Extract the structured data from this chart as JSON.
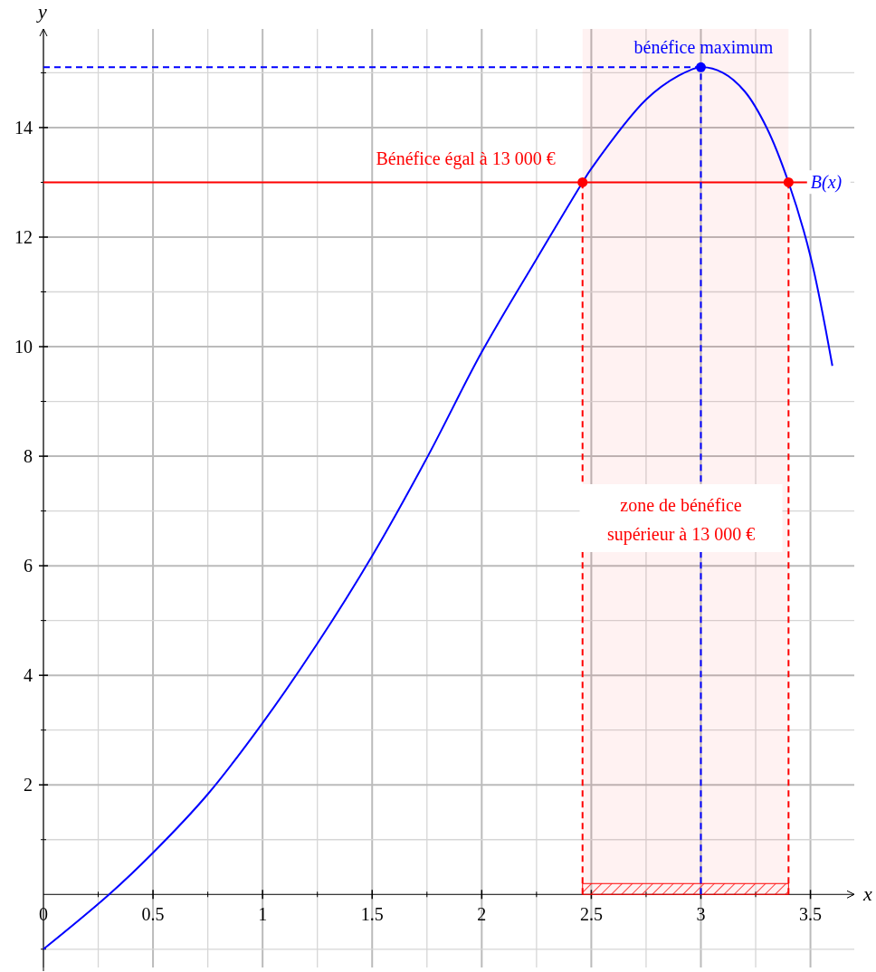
{
  "chart_data": {
    "type": "line",
    "xlabel": "x",
    "ylabel": "y",
    "xlim": [
      0,
      3.7
    ],
    "ylim": [
      -1.4,
      15.8
    ],
    "xticks": [
      {
        "value": 0,
        "label": "0"
      },
      {
        "value": 0.25,
        "label": null
      },
      0.5,
      {
        "value": 0.75,
        "label": null
      },
      1,
      {
        "value": 1.25,
        "label": null
      },
      1.5,
      {
        "value": 1.75,
        "label": null
      },
      2,
      {
        "value": 2.25,
        "label": null
      },
      2.5,
      {
        "value": 2.75,
        "label": null
      },
      3,
      {
        "value": 3.25,
        "label": null
      },
      3.5
    ],
    "yticks": [
      {
        "value": -1,
        "label": null
      },
      {
        "value": 1,
        "label": null
      },
      2,
      {
        "value": 3,
        "label": null
      },
      4,
      {
        "value": 5,
        "label": null
      },
      6,
      {
        "value": 7,
        "label": null
      },
      8,
      {
        "value": 9,
        "label": null
      },
      10,
      {
        "value": 11,
        "label": null
      },
      12,
      {
        "value": 13,
        "label": null
      },
      14,
      {
        "value": 15,
        "label": null
      }
    ],
    "grid": true,
    "series": [
      {
        "name": "B(x)",
        "color": "#0000ff",
        "line_style": "solid",
        "marker": "none",
        "x": [
          0,
          0.3,
          0.5,
          0.75,
          1,
          1.25,
          1.5,
          1.75,
          2,
          2.25,
          2.46,
          2.5,
          2.75,
          2.9,
          3,
          3.1,
          3.2,
          3.3,
          3.4,
          3.5,
          3.6
        ],
        "values": [
          -1,
          0,
          0.76,
          1.83,
          3.13,
          4.58,
          6.18,
          7.97,
          9.9,
          11.6,
          13,
          13.25,
          14.51,
          14.95,
          15.1,
          15,
          14.66,
          14,
          13,
          11.65,
          9.65
        ]
      },
      {
        "type": "scatter",
        "color": "#ff0000",
        "marker": "circle",
        "x": [
          2.46,
          3.4
        ],
        "values": [
          13,
          13
        ]
      },
      {
        "type": "scatter",
        "color": "#0000ff",
        "marker": "circle",
        "x": [
          3
        ],
        "values": [
          15.1
        ]
      }
    ],
    "ref_lines": [
      {
        "axis": "y",
        "value": 13,
        "label": "Bénéfice égal à 13 000 €",
        "color": "#ff0000",
        "line_style": "solid"
      },
      {
        "axis": "y",
        "value": 15.1,
        "color": "#0000ff",
        "line_style": "dashed"
      },
      {
        "axis": "x",
        "value": 3,
        "color": "#0000ff",
        "line_style": "dashed"
      },
      {
        "axis": "x",
        "value": 2.46,
        "color": "#ff0000",
        "line_style": "dashed"
      },
      {
        "axis": "x",
        "value": 3.4,
        "color": "#ff0000",
        "line_style": "dashed"
      }
    ],
    "bands": [
      {
        "axis": "x",
        "from": 2.46,
        "to": 3.4,
        "label": "zone de bénéfice supérieur à 13 000 €",
        "color": "#ff0000"
      }
    ],
    "annotations": [
      {
        "text": "bénéfice maximum",
        "x": 3,
        "y": 15.1
      }
    ]
  }
}
